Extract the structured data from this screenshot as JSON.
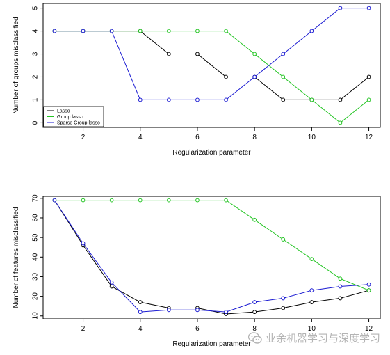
{
  "watermark": {
    "text": "业余机器学习与深度学习",
    "icon": "wechat-logo-icon"
  },
  "chart_data": [
    {
      "type": "line",
      "xlabel": "Regularization parameter",
      "ylabel": "Number of groups misclassified",
      "xlim": [
        0.6,
        12.4
      ],
      "ylim": [
        -0.2,
        5.2
      ],
      "xticks": [
        2,
        4,
        6,
        8,
        10,
        12
      ],
      "yticks": [
        0,
        1,
        2,
        3,
        4,
        5
      ],
      "legend_position": "bottom-left",
      "x": [
        1,
        2,
        3,
        4,
        5,
        6,
        7,
        8,
        9,
        10,
        11,
        12
      ],
      "series": [
        {
          "name": "Lasso",
          "color": "#000000",
          "values": [
            4,
            4,
            4,
            4,
            3,
            3,
            2,
            2,
            1,
            1,
            1,
            2
          ]
        },
        {
          "name": "Group lasso",
          "color": "#22c422",
          "values": [
            4,
            4,
            4,
            4,
            4,
            4,
            4,
            3,
            2,
            1,
            0,
            1
          ]
        },
        {
          "name": "Sparse Group lasso",
          "color": "#1a1ad2",
          "values": [
            4,
            4,
            4,
            1,
            1,
            1,
            1,
            2,
            3,
            4,
            5,
            5
          ]
        }
      ]
    },
    {
      "type": "line",
      "xlabel": "Regularization parameter",
      "ylabel": "Number of features misclassified",
      "xlim": [
        0.6,
        12.4
      ],
      "ylim": [
        8.5,
        71
      ],
      "xticks": [
        2,
        4,
        6,
        8,
        10,
        12
      ],
      "yticks": [
        10,
        20,
        30,
        40,
        50,
        60,
        70
      ],
      "x": [
        1,
        2,
        3,
        4,
        5,
        6,
        7,
        8,
        9,
        10,
        11,
        12
      ],
      "series": [
        {
          "color": "#000000",
          "values": [
            69,
            46,
            25,
            17,
            14,
            14,
            11,
            12,
            14,
            17,
            19,
            23
          ]
        },
        {
          "color": "#22c422",
          "values": [
            69,
            69,
            69,
            69,
            69,
            69,
            69,
            59,
            49,
            39,
            29,
            23
          ]
        },
        {
          "color": "#1a1ad2",
          "values": [
            69,
            47,
            27,
            12,
            13,
            13,
            12,
            17,
            19,
            23,
            25,
            26
          ]
        }
      ]
    }
  ]
}
